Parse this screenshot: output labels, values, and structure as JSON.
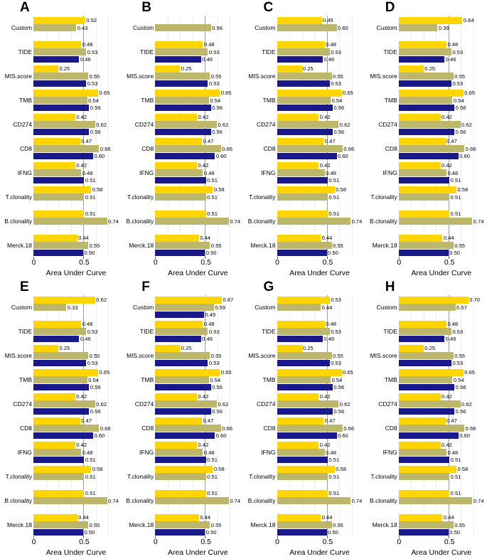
{
  "figure": {
    "xlabel": "Area Under Curve",
    "x_tick_labels": [
      "0",
      "0.5"
    ]
  },
  "chart_data": {
    "type": "bar",
    "orientation": "horizontal",
    "xlabel": "Area Under Curve",
    "x_ticks": [
      0,
      0.5
    ],
    "xlim": [
      0,
      0.857
    ],
    "grid": true,
    "major_gridline": 0.5,
    "minor_gridlines": [
      0.125,
      0.25,
      0.375,
      0.625,
      0.75
    ],
    "legend": "none",
    "categories": [
      "Custom",
      "TIDE",
      "MIS.score",
      "TMB",
      "CD274",
      "CD8",
      "IFNG",
      "T.clonality",
      "B.clonality",
      "Merck.18"
    ],
    "series_names": [
      "gold-series",
      "khaki-series",
      "navy-series"
    ],
    "series_colors": [
      "#FFD500",
      "#BDB76B",
      "#19198C"
    ],
    "panels": [
      {
        "label": "A",
        "rows": [
          [
            0.52,
            0.43,
            null
          ],
          [
            0.48,
            0.53,
            0.46
          ],
          [
            0.25,
            0.55,
            0.53
          ],
          [
            0.65,
            0.54,
            0.56
          ],
          [
            0.42,
            0.62,
            0.56
          ],
          [
            0.47,
            0.66,
            0.6
          ],
          [
            0.42,
            0.48,
            0.51
          ],
          [
            0.58,
            0.51,
            null
          ],
          [
            0.51,
            0.74,
            null
          ],
          [
            0.44,
            0.55,
            0.5
          ]
        ]
      },
      {
        "label": "B",
        "rows": [
          [
            null,
            0.56,
            null
          ],
          [
            0.48,
            0.53,
            0.46
          ],
          [
            0.25,
            0.55,
            0.53
          ],
          [
            0.65,
            0.54,
            0.56
          ],
          [
            0.42,
            0.62,
            0.56
          ],
          [
            0.47,
            0.66,
            0.6
          ],
          [
            0.42,
            0.48,
            0.51
          ],
          [
            0.58,
            0.51,
            null
          ],
          [
            0.51,
            0.74,
            null
          ],
          [
            0.44,
            0.55,
            0.5
          ]
        ]
      },
      {
        "label": "C",
        "rows": [
          [
            0.45,
            0.6,
            null
          ],
          [
            0.48,
            0.53,
            0.46
          ],
          [
            0.25,
            0.55,
            0.53
          ],
          [
            0.65,
            0.54,
            0.56
          ],
          [
            0.42,
            0.62,
            0.56
          ],
          [
            0.47,
            0.66,
            0.6
          ],
          [
            0.42,
            0.48,
            0.51
          ],
          [
            0.58,
            0.51,
            null
          ],
          [
            0.51,
            0.74,
            null
          ],
          [
            0.44,
            0.55,
            0.5
          ]
        ]
      },
      {
        "label": "D",
        "rows": [
          [
            0.64,
            0.39,
            null
          ],
          [
            0.48,
            0.53,
            0.46
          ],
          [
            0.25,
            0.55,
            0.53
          ],
          [
            0.65,
            0.54,
            0.56
          ],
          [
            0.42,
            0.62,
            0.56
          ],
          [
            0.47,
            0.66,
            0.6
          ],
          [
            0.42,
            0.48,
            0.51
          ],
          [
            0.58,
            0.51,
            null
          ],
          [
            0.51,
            0.74,
            null
          ],
          [
            0.44,
            0.55,
            0.5
          ]
        ]
      },
      {
        "label": "E",
        "rows": [
          [
            0.62,
            0.33,
            null
          ],
          [
            0.48,
            0.53,
            0.46
          ],
          [
            0.25,
            0.55,
            0.53
          ],
          [
            0.65,
            0.54,
            0.56
          ],
          [
            0.42,
            0.62,
            0.56
          ],
          [
            0.47,
            0.66,
            0.6
          ],
          [
            0.42,
            0.48,
            0.51
          ],
          [
            0.58,
            0.51,
            null
          ],
          [
            0.51,
            0.74,
            null
          ],
          [
            0.44,
            0.55,
            0.5
          ]
        ]
      },
      {
        "label": "F",
        "rows": [
          [
            0.67,
            0.59,
            0.49
          ],
          [
            0.48,
            0.53,
            0.46
          ],
          [
            0.25,
            0.55,
            0.53
          ],
          [
            0.65,
            0.54,
            0.56
          ],
          [
            0.42,
            0.62,
            0.56
          ],
          [
            0.47,
            0.66,
            0.6
          ],
          [
            0.42,
            0.48,
            0.51
          ],
          [
            0.58,
            0.51,
            null
          ],
          [
            0.51,
            0.74,
            null
          ],
          [
            0.44,
            0.55,
            0.5
          ]
        ]
      },
      {
        "label": "G",
        "rows": [
          [
            0.53,
            0.44,
            null
          ],
          [
            0.48,
            0.53,
            0.46
          ],
          [
            0.25,
            0.55,
            0.53
          ],
          [
            0.65,
            0.54,
            0.56
          ],
          [
            0.42,
            0.62,
            0.56
          ],
          [
            0.47,
            0.66,
            0.6
          ],
          [
            0.42,
            0.48,
            0.51
          ],
          [
            0.58,
            0.51,
            null
          ],
          [
            0.51,
            0.74,
            null
          ],
          [
            0.44,
            0.55,
            0.5
          ]
        ]
      },
      {
        "label": "H",
        "rows": [
          [
            0.7,
            0.57,
            null
          ],
          [
            0.48,
            0.53,
            0.46
          ],
          [
            0.25,
            0.55,
            0.53
          ],
          [
            0.65,
            0.54,
            0.56
          ],
          [
            0.42,
            0.62,
            0.56
          ],
          [
            0.47,
            0.66,
            0.6
          ],
          [
            0.42,
            0.48,
            0.51
          ],
          [
            0.58,
            0.51,
            null
          ],
          [
            0.51,
            0.74,
            null
          ],
          [
            0.44,
            0.55,
            0.5
          ]
        ]
      }
    ]
  }
}
